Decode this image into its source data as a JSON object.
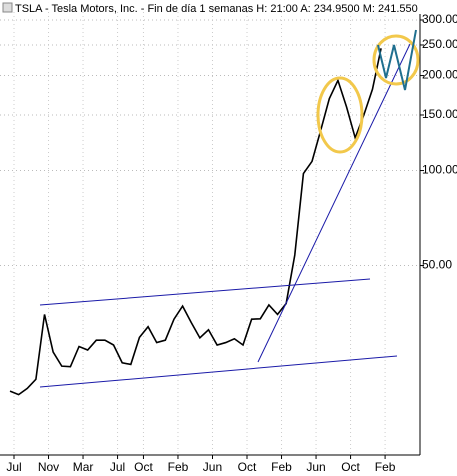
{
  "chart_data": {
    "type": "line",
    "title": "TSLA - Tesla Motors, Inc. - Fin de día 1 semanas H: 21:00 A: 234.9500 M: 241.550",
    "categories": [
      "Jul",
      null,
      null,
      null,
      "Nov",
      null,
      null,
      null,
      "Mar",
      null,
      null,
      null,
      "Jul",
      null,
      null,
      "Oct",
      null,
      null,
      null,
      "Feb",
      null,
      null,
      null,
      "Jun",
      null,
      null,
      null,
      "Oct",
      null,
      null,
      null,
      "Feb",
      null,
      null,
      null,
      "Jun",
      null,
      null,
      null,
      "Oct",
      null,
      null,
      null,
      "Feb"
    ],
    "series": [
      {
        "name": "TSLA",
        "color": "#000000",
        "values": [
          20,
          19.5,
          20.4,
          21.8,
          35,
          26.6,
          24,
          23.9,
          27.7,
          27,
          29,
          29,
          28,
          24.6,
          24.3,
          29.6,
          32,
          28.5,
          29,
          33.8,
          37.2,
          33,
          29.5,
          31.3,
          28,
          28.5,
          29.3,
          28,
          33.8,
          33.9,
          37.5,
          35,
          37.9,
          54,
          97.8,
          107,
          134,
          169,
          193,
          159,
          127,
          150,
          181,
          244
        ]
      }
    ],
    "ylim": [
      14,
      318
    ],
    "log": true,
    "yticks": [
      {
        "value": 50,
        "label": "50.00"
      },
      {
        "value": 100,
        "label": "100.00"
      },
      {
        "value": 150,
        "label": "150.00"
      },
      {
        "value": 200,
        "label": "200.00"
      },
      {
        "value": 250,
        "label": "250.00"
      },
      {
        "value": 300,
        "label": "300.00"
      }
    ],
    "grid": true
  }
}
